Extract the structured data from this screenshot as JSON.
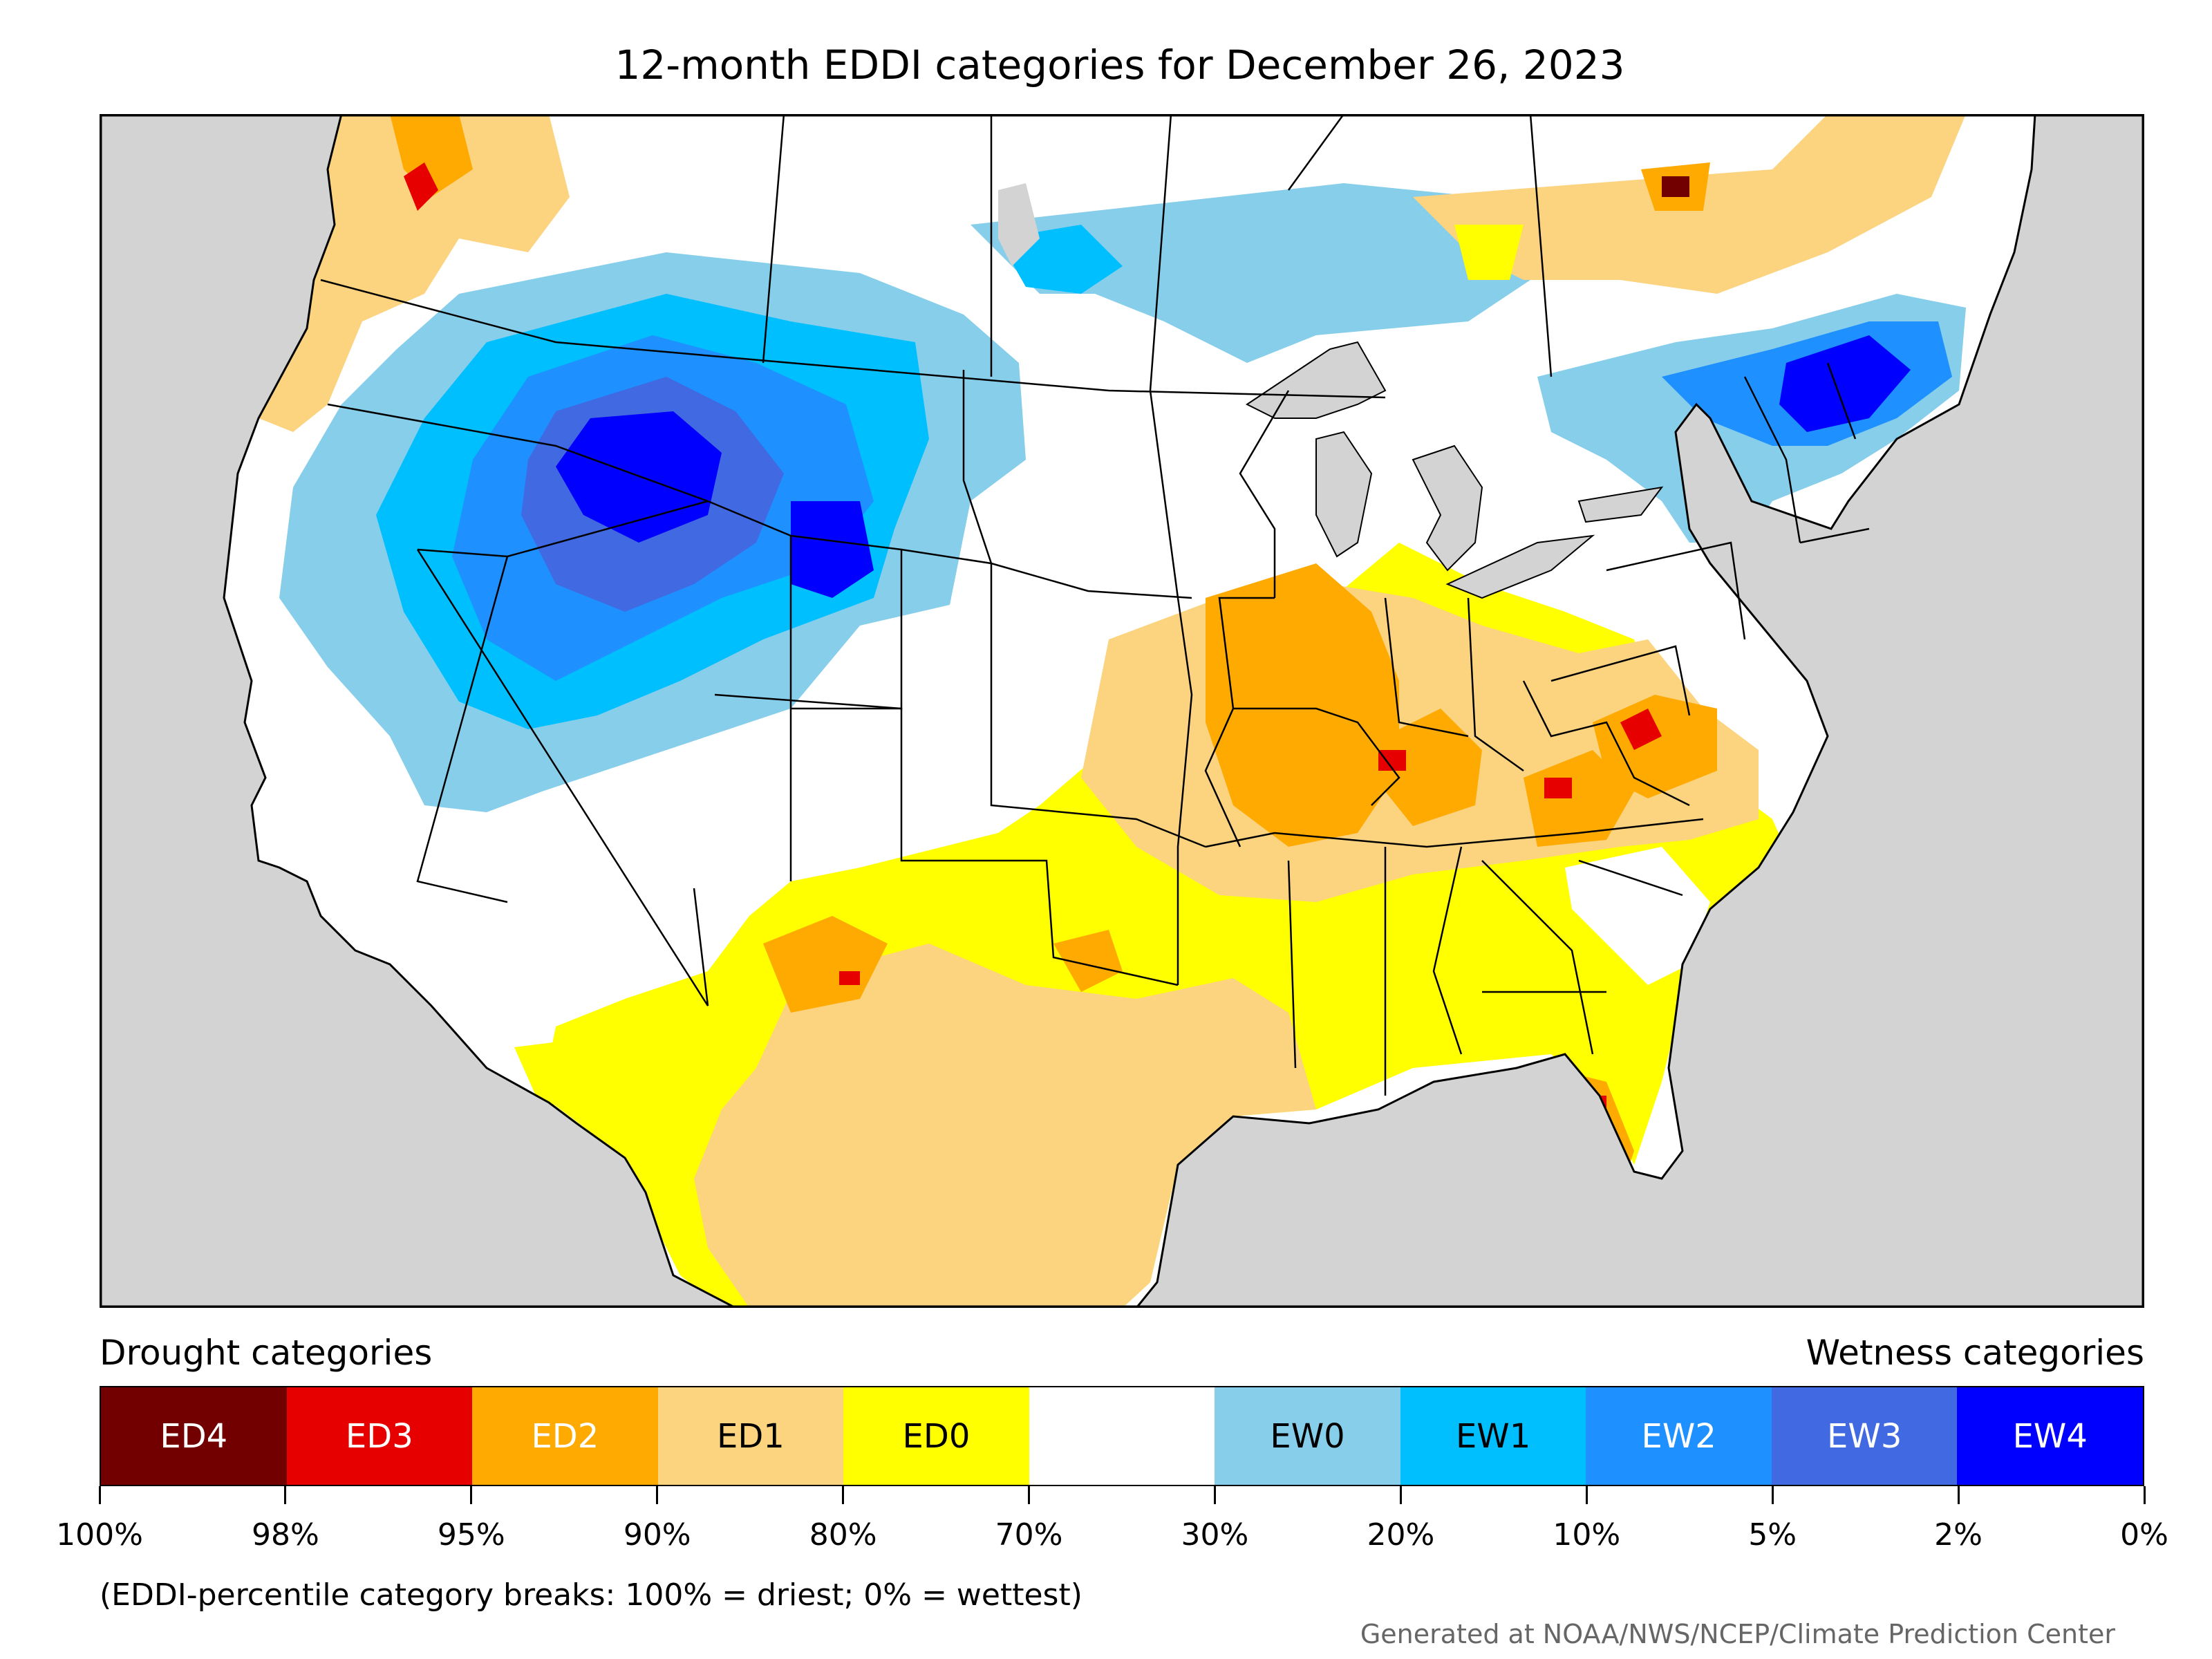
{
  "title": "12-month EDDI categories for December 26, 2023",
  "legend": {
    "drought_heading": "Drought categories",
    "wetness_heading": "Wetness categories",
    "categories": [
      {
        "label": "ED4",
        "color": "#730000",
        "text_color": "#ffffff"
      },
      {
        "label": "ED3",
        "color": "#e60000",
        "text_color": "#ffffff"
      },
      {
        "label": "ED2",
        "color": "#ffaa00",
        "text_color": "#ffffff"
      },
      {
        "label": "ED1",
        "color": "#fcd37f",
        "text_color": "#000000"
      },
      {
        "label": "ED0",
        "color": "#ffff00",
        "text_color": "#000000"
      },
      {
        "label": "",
        "color": "#ffffff",
        "text_color": "#000000"
      },
      {
        "label": "EW0",
        "color": "#87ceeb",
        "text_color": "#000000"
      },
      {
        "label": "EW1",
        "color": "#00bfff",
        "text_color": "#000000"
      },
      {
        "label": "EW2",
        "color": "#1e90ff",
        "text_color": "#ffffff"
      },
      {
        "label": "EW3",
        "color": "#4169e1",
        "text_color": "#ffffff"
      },
      {
        "label": "EW4",
        "color": "#0000ff",
        "text_color": "#ffffff"
      }
    ],
    "breaks": [
      "100%",
      "98%",
      "95%",
      "90%",
      "80%",
      "70%",
      "30%",
      "20%",
      "10%",
      "5%",
      "2%",
      "0%"
    ]
  },
  "note": "(EDDI-percentile category breaks: 100% = driest; 0% = wettest)",
  "credit": "Generated at NOAA/NWS/NCEP/Climate Prediction Center",
  "map_colors": {
    "ocean": "#d3d3d3",
    "land": "#ffffff",
    "lakes": "#d3d3d3",
    "borders": "#000000"
  }
}
